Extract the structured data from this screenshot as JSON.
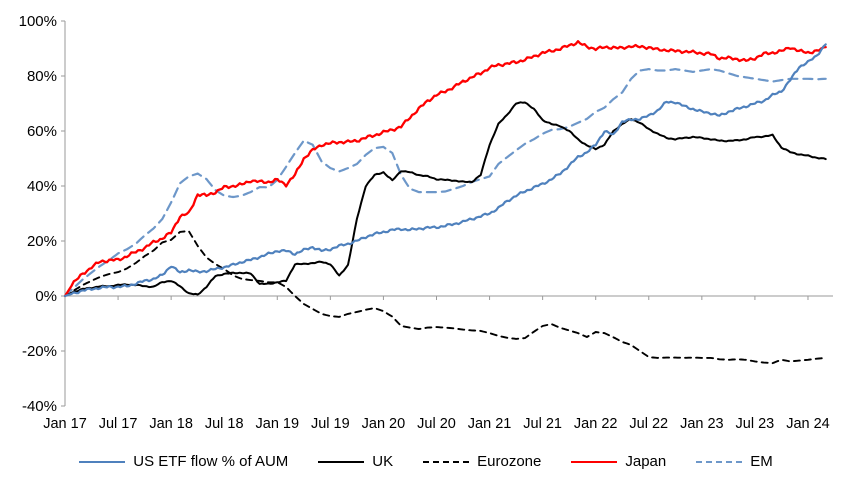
{
  "chart_data": {
    "type": "line",
    "title": "",
    "xlabel": "",
    "ylabel": "",
    "grid": false,
    "legend_position": "bottom",
    "x_axis": {
      "frequency": "monthly",
      "start": "Jan 2017",
      "end": "Mar 2024",
      "tick_labels": [
        "Jan 17",
        "Jul 17",
        "Jan 18",
        "Jul 18",
        "Jan 19",
        "Jul 19",
        "Jan 20",
        "Jul 20",
        "Jan 21",
        "Jul 21",
        "Jan 22",
        "Jul 22",
        "Jan 23",
        "Jul 23",
        "Jan 24"
      ]
    },
    "y_axis": {
      "min": -40,
      "max": 100,
      "step": 20,
      "tick_labels": [
        "100%",
        "80%",
        "60%",
        "40%",
        "20%",
        "0%",
        "-20%",
        "-40%"
      ],
      "unit": "%"
    },
    "z_order": [
      2,
      4,
      1,
      3,
      0
    ],
    "series": [
      {
        "name": "US ETF flow % of AUM",
        "color": "#4f81bd",
        "style": "solid",
        "values": [
          0,
          1,
          2,
          2.5,
          3,
          3.3,
          3.3,
          3.6,
          4.5,
          5.5,
          6.2,
          7.6,
          11,
          8.5,
          9.5,
          8.7,
          9.1,
          9.8,
          10.5,
          11.3,
          12.4,
          13.1,
          14.2,
          15.3,
          16.4,
          16.4,
          15.3,
          16.7,
          17.8,
          16.4,
          17,
          18.2,
          19,
          20,
          21.5,
          22.5,
          23.3,
          24,
          24.4,
          24,
          24.5,
          24.8,
          25,
          25.5,
          26.2,
          27,
          28,
          29,
          30,
          32,
          34.5,
          36.5,
          38,
          39.5,
          40.7,
          42.5,
          44.5,
          47.5,
          50.5,
          52.3,
          55,
          60,
          58.5,
          63.5,
          64,
          64.5,
          65.5,
          67.5,
          70.5,
          70.5,
          69,
          68,
          67,
          66.5,
          65.5,
          67,
          68,
          69,
          70,
          71,
          73,
          74.5,
          78.5,
          83.3,
          85,
          87.5,
          91.5
        ]
      },
      {
        "name": "UK",
        "color": "#000000",
        "style": "solid",
        "values": [
          0,
          1.5,
          2.5,
          3,
          3.5,
          3.6,
          4,
          4.2,
          4,
          3.6,
          3.3,
          5.1,
          5.5,
          3.6,
          0.9,
          0.5,
          3.3,
          7.3,
          8,
          8.4,
          8.4,
          8.2,
          4.4,
          4.4,
          5,
          5.5,
          11.6,
          11.6,
          12,
          12.4,
          11.6,
          7.3,
          11.3,
          28,
          40,
          44,
          45,
          42,
          45.5,
          45,
          44,
          43.5,
          42.5,
          42.2,
          42,
          41.5,
          41.5,
          44,
          55,
          62.5,
          66,
          70,
          70.5,
          68,
          64,
          62.5,
          61.8,
          60,
          57,
          54.7,
          53.5,
          55,
          60,
          62.5,
          64.4,
          63,
          60.7,
          59,
          57.5,
          57,
          57.5,
          57.8,
          57.5,
          57,
          56.5,
          56.4,
          56.6,
          57,
          57.8,
          58,
          58.5,
          54,
          52.3,
          51.5,
          51,
          50.3,
          49.8
        ]
      },
      {
        "name": "Eurozone",
        "color": "#000000",
        "style": "dashed",
        "values": [
          0,
          2,
          4,
          5.5,
          7,
          8,
          8.7,
          10,
          12,
          14.5,
          16.5,
          19.5,
          20.4,
          23.3,
          23.6,
          18.2,
          14,
          11.6,
          9.8,
          7.5,
          6.2,
          5.8,
          5.5,
          5,
          5,
          3.3,
          0,
          -2.9,
          -4.7,
          -6.5,
          -7.3,
          -7.6,
          -6.5,
          -5.8,
          -5,
          -4.4,
          -5.5,
          -7.5,
          -10.9,
          -11.5,
          -12,
          -11.5,
          -11.3,
          -11.5,
          -11.8,
          -12.2,
          -12.5,
          -12.7,
          -13.5,
          -14.5,
          -15.2,
          -15.6,
          -15.3,
          -13,
          -10.9,
          -10.2,
          -11.6,
          -12.5,
          -13.5,
          -14.9,
          -13.1,
          -13.5,
          -15,
          -16.7,
          -17.8,
          -20,
          -22.2,
          -22.5,
          -22.4,
          -22.4,
          -22.5,
          -22.4,
          -22.5,
          -22.5,
          -23,
          -23.2,
          -23,
          -23.2,
          -23.8,
          -24.2,
          -24.4,
          -23.2,
          -23.8,
          -23.5,
          -23.2,
          -22.8,
          -22.5
        ]
      },
      {
        "name": "Japan",
        "color": "#fe0000",
        "style": "solid",
        "values": [
          0,
          5,
          8,
          10.5,
          12.5,
          13,
          13.1,
          14.5,
          16,
          17.5,
          19.5,
          21,
          23,
          29,
          30,
          37,
          36.5,
          37.8,
          39.5,
          40,
          40.5,
          42,
          41.5,
          41.5,
          42.2,
          40.5,
          44,
          50,
          53,
          55,
          55.5,
          56,
          56,
          56.5,
          57.5,
          58.5,
          59.5,
          60.5,
          61.5,
          65,
          68,
          71,
          73,
          74.5,
          76,
          78,
          79.5,
          81,
          83,
          84,
          84.5,
          85,
          86,
          87,
          88.5,
          89,
          90,
          91,
          92.4,
          90.5,
          90,
          90.3,
          90.5,
          90,
          91,
          90.5,
          90.5,
          89.5,
          89.5,
          89,
          89,
          88.6,
          88.3,
          88,
          86.5,
          86.5,
          86.2,
          85.5,
          86.5,
          88,
          88.5,
          89,
          90.5,
          89,
          88.6,
          89,
          90.5
        ]
      },
      {
        "name": "EM",
        "color": "#6d97c9",
        "style": "dashed",
        "values": [
          0,
          3,
          6,
          8.5,
          11,
          13,
          15.5,
          17,
          19,
          22,
          24.5,
          28,
          34,
          41,
          43.5,
          44.5,
          42.5,
          38.5,
          36.5,
          36,
          36.5,
          37.8,
          39.6,
          39.5,
          42.2,
          47,
          52,
          56.5,
          55,
          49,
          46.5,
          45.3,
          46.5,
          48,
          51.3,
          53.8,
          54.2,
          52,
          44,
          39,
          37.8,
          37.8,
          37.8,
          38,
          39,
          40,
          41.5,
          42.5,
          43.5,
          48,
          50.5,
          53,
          55.3,
          57,
          59,
          60.4,
          60.7,
          61.5,
          63,
          64.4,
          67,
          68.5,
          71.6,
          74,
          79,
          82,
          82.5,
          82,
          82,
          82.5,
          82,
          81.5,
          82,
          82.5,
          82,
          81,
          80,
          79.5,
          79,
          78.5,
          78,
          78.5,
          79,
          79,
          79,
          78.8,
          79
        ]
      }
    ]
  }
}
